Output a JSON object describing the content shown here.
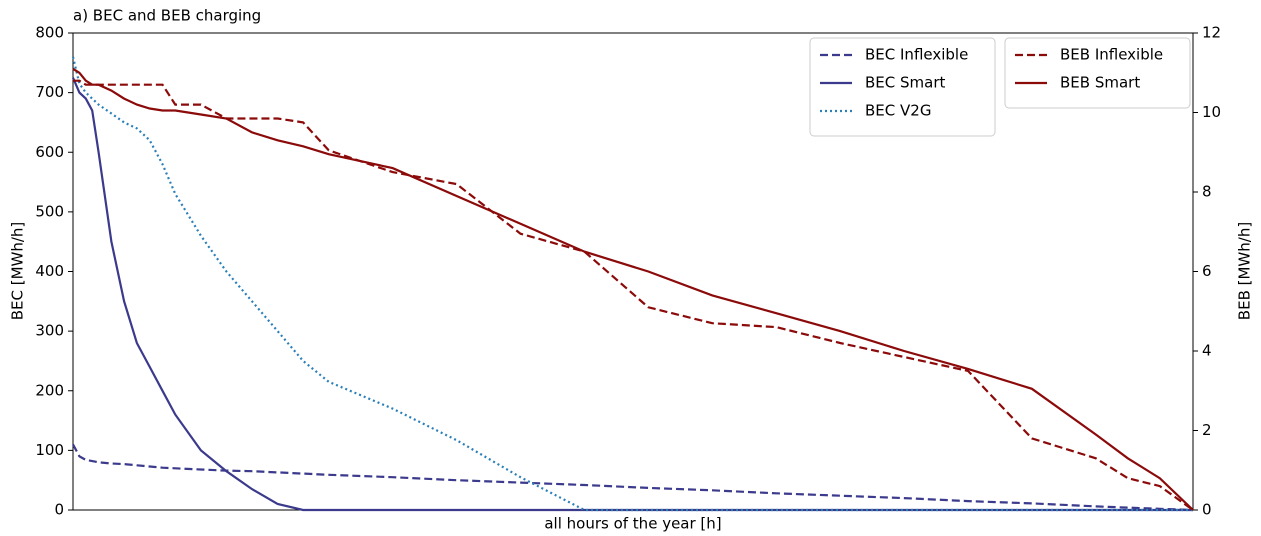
{
  "chart_data": {
    "type": "line",
    "title": "a) BEC and BEB charging",
    "xlabel": "all hours of the year [h]",
    "ylabel": "BEC [MWh/h]",
    "y2label": "BEB [MWh/h]",
    "x": [
      0,
      50,
      100,
      150,
      200,
      300,
      400,
      500,
      600,
      700,
      800,
      1000,
      1200,
      1400,
      1600,
      1800,
      2000,
      2500,
      3000,
      3500,
      4000,
      4500,
      5000,
      5500,
      6000,
      6500,
      7000,
      7500,
      8000,
      8250,
      8500,
      8760
    ],
    "xlim": [
      0,
      8760
    ],
    "ylim": [
      0,
      800
    ],
    "yticks": [
      0,
      100,
      200,
      300,
      400,
      500,
      600,
      700,
      800
    ],
    "y2lim": [
      0,
      12
    ],
    "y2ticks": [
      0,
      2,
      4,
      6,
      8,
      10,
      12
    ],
    "series": [
      {
        "name": "BEC Inflexible",
        "color": "#3b3a8c",
        "style": "dashed",
        "axis": "y",
        "values": [
          110,
          90,
          84,
          82,
          80,
          78,
          77,
          75,
          73,
          71,
          70,
          68,
          66,
          65,
          63,
          61,
          59,
          55,
          50,
          46,
          42,
          37,
          33,
          28,
          24,
          20,
          15,
          11,
          6,
          4,
          2,
          0
        ]
      },
      {
        "name": "BEC Smart",
        "color": "#3b3a8c",
        "style": "solid",
        "axis": "y",
        "values": [
          725,
          700,
          690,
          670,
          600,
          450,
          350,
          280,
          240,
          200,
          160,
          100,
          65,
          35,
          10,
          0,
          0,
          0,
          0,
          0,
          0,
          0,
          0,
          0,
          0,
          0,
          0,
          0,
          0,
          0,
          0,
          0
        ]
      },
      {
        "name": "BEC V2G",
        "color": "#2a7fb8",
        "style": "dotted",
        "axis": "y",
        "values": [
          760,
          715,
          700,
          690,
          680,
          665,
          650,
          640,
          620,
          580,
          530,
          460,
          400,
          350,
          300,
          250,
          215,
          170,
          117,
          55,
          0,
          0,
          0,
          0,
          0,
          0,
          0,
          0,
          0,
          0,
          0,
          0
        ]
      },
      {
        "name": "BEB Inflexible",
        "color": "#8b0a0a",
        "style": "dashed",
        "axis": "y2",
        "values": [
          10.8,
          10.8,
          10.7,
          10.7,
          10.7,
          10.7,
          10.7,
          10.7,
          10.7,
          10.7,
          10.2,
          10.2,
          9.85,
          9.85,
          9.85,
          9.75,
          9.05,
          8.5,
          8.2,
          6.95,
          6.5,
          5.1,
          4.7,
          4.6,
          4.2,
          3.85,
          3.5,
          1.8,
          1.3,
          0.8,
          0.6,
          0
        ]
      },
      {
        "name": "BEB Smart",
        "color": "#8b0a0a",
        "style": "solid",
        "axis": "y2",
        "values": [
          11.1,
          11.0,
          10.8,
          10.7,
          10.7,
          10.55,
          10.35,
          10.2,
          10.1,
          10.05,
          10.05,
          9.95,
          9.85,
          9.5,
          9.3,
          9.15,
          8.95,
          8.6,
          7.9,
          7.2,
          6.5,
          6.0,
          5.4,
          4.95,
          4.5,
          4.0,
          3.55,
          3.05,
          1.9,
          1.3,
          0.8,
          0
        ]
      }
    ]
  }
}
